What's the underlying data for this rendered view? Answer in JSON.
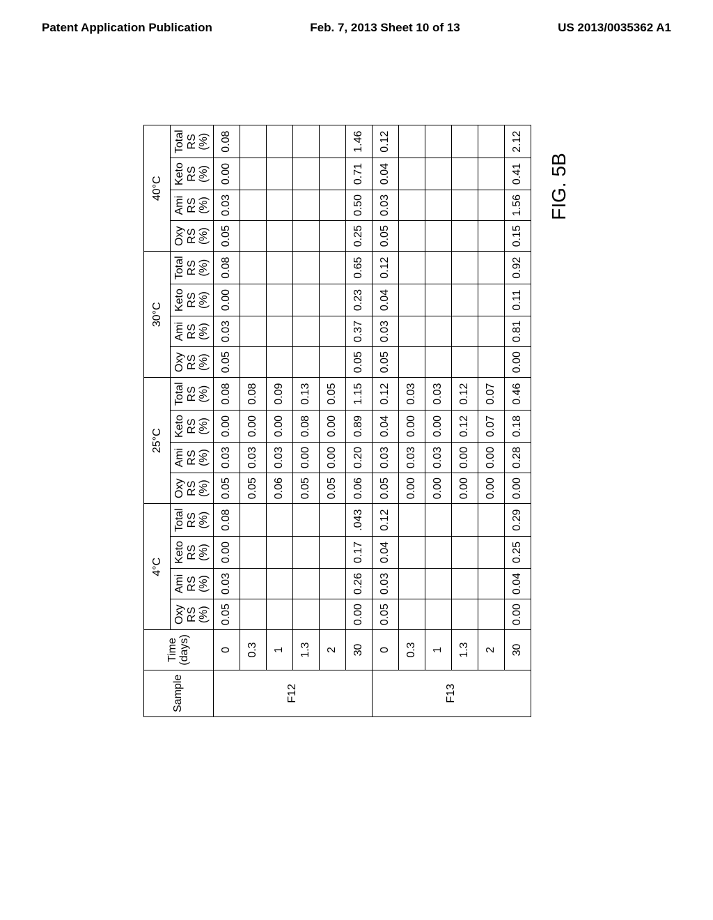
{
  "header": {
    "left": "Patent Application Publication",
    "center": "Feb. 7, 2013  Sheet 10 of 13",
    "right": "US 2013/0035362 A1"
  },
  "figure_label": "FIG. 5B",
  "table": {
    "col_sample": "Sample",
    "col_time_l1": "Time",
    "col_time_l2": "(days)",
    "temps": [
      "4°C",
      "25°C",
      "30°C",
      "40°C"
    ],
    "subhead_l1": [
      "Oxy",
      "Ami",
      "Keto",
      "Total"
    ],
    "subhead_l2": "RS",
    "subhead_l3": "(%)",
    "samples": [
      {
        "name": "F12",
        "rows": [
          {
            "time": "0",
            "t4": [
              "0.05",
              "0.03",
              "0.00",
              "0.08"
            ],
            "t25": [
              "0.05",
              "0.03",
              "0.00",
              "0.08"
            ],
            "t30": [
              "0.05",
              "0.03",
              "0.00",
              "0.08"
            ],
            "t40": [
              "0.05",
              "0.03",
              "0.00",
              "0.08"
            ]
          },
          {
            "time": "0.3",
            "t4": null,
            "t25": [
              "0.05",
              "0.03",
              "0.00",
              "0.08"
            ],
            "t30": null,
            "t40": null
          },
          {
            "time": "1",
            "t4": null,
            "t25": [
              "0.06",
              "0.03",
              "0.00",
              "0.09"
            ],
            "t30": null,
            "t40": null
          },
          {
            "time": "1.3",
            "t4": null,
            "t25": [
              "0.05",
              "0.00",
              "0.08",
              "0.13"
            ],
            "t30": null,
            "t40": null
          },
          {
            "time": "2",
            "t4": null,
            "t25": [
              "0.05",
              "0.00",
              "0.00",
              "0.05"
            ],
            "t30": null,
            "t40": null
          },
          {
            "time": "30",
            "t4": [
              "0.00",
              "0.26",
              "0.17",
              ".043"
            ],
            "t25": [
              "0.06",
              "0.20",
              "0.89",
              "1.15"
            ],
            "t30": [
              "0.05",
              "0.37",
              "0.23",
              "0.65"
            ],
            "t40": [
              "0.25",
              "0.50",
              "0.71",
              "1.46"
            ]
          }
        ]
      },
      {
        "name": "F13",
        "rows": [
          {
            "time": "0",
            "t4": [
              "0.05",
              "0.03",
              "0.04",
              "0.12"
            ],
            "t25": [
              "0.05",
              "0.03",
              "0.04",
              "0.12"
            ],
            "t30": [
              "0.05",
              "0.03",
              "0.04",
              "0.12"
            ],
            "t40": [
              "0.05",
              "0.03",
              "0.04",
              "0.12"
            ]
          },
          {
            "time": "0.3",
            "t4": null,
            "t25": [
              "0.00",
              "0.03",
              "0.00",
              "0.03"
            ],
            "t30": null,
            "t40": null
          },
          {
            "time": "1",
            "t4": null,
            "t25": [
              "0.00",
              "0.03",
              "0.00",
              "0.03"
            ],
            "t30": null,
            "t40": null
          },
          {
            "time": "1.3",
            "t4": null,
            "t25": [
              "0.00",
              "0.00",
              "0.12",
              "0.12"
            ],
            "t30": null,
            "t40": null
          },
          {
            "time": "2",
            "t4": null,
            "t25": [
              "0.00",
              "0.00",
              "0.07",
              "0.07"
            ],
            "t30": null,
            "t40": null
          },
          {
            "time": "30",
            "t4": [
              "0.00",
              "0.04",
              "0.25",
              "0.29"
            ],
            "t25": [
              "0.00",
              "0.28",
              "0.18",
              "0.46"
            ],
            "t30": [
              "0.00",
              "0.81",
              "0.11",
              "0.92"
            ],
            "t40": [
              "0.15",
              "1.56",
              "0.41",
              "2.12"
            ]
          }
        ]
      }
    ]
  },
  "style": {
    "border_color": "#000000",
    "bg": "#ffffff",
    "hatch_angle": 45,
    "font_family": "Arial",
    "cell_font_size": 16,
    "header_font_size": 17,
    "fig_font_size": 28,
    "rotation_deg": -90,
    "table_width_cols": 18
  }
}
